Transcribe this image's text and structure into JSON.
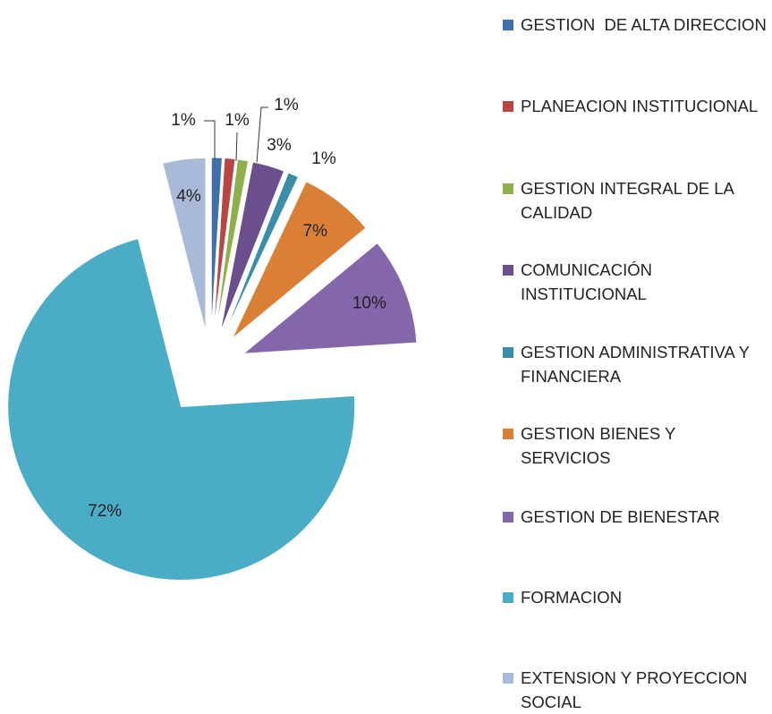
{
  "chart_data": {
    "type": "pie",
    "categories": [
      "GESTION  DE ALTA DIRECCION",
      "PLANEACION INSTITUCIONAL",
      "GESTION INTEGRAL DE LA CALIDAD",
      "COMUNICACIÓN INSTITUCIONAL",
      "GESTION ADMINISTRATIVA Y FINANCIERA",
      "GESTION BIENES Y SERVICIOS",
      "GESTION DE BIENESTAR",
      "FORMACION",
      "EXTENSION Y PROYECCION SOCIAL"
    ],
    "values": [
      1,
      1,
      1,
      3,
      1,
      7,
      10,
      72,
      4
    ],
    "value_labels": [
      "1%",
      "1%",
      "1%",
      "3%",
      "1%",
      "7%",
      "10%",
      "72%",
      "4%"
    ],
    "colors": [
      "#3F6FA8",
      "#B94545",
      "#8EB04C",
      "#6B4F8C",
      "#3A8FA8",
      "#D98036",
      "#8466AA",
      "#4BACC6",
      "#A9BAD8"
    ],
    "legend": "right"
  }
}
